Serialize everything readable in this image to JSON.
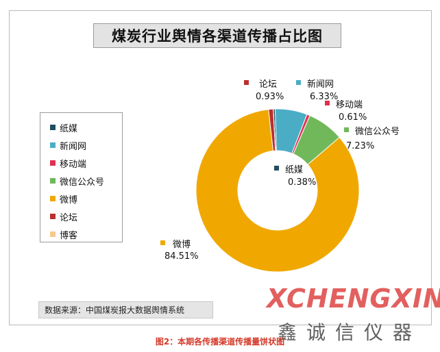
{
  "header_fragment": "",
  "chart_data": {
    "type": "pie",
    "donut": true,
    "title": "煤炭行业舆情各渠道传播占比图",
    "categories": [
      "纸媒",
      "新闻网",
      "移动端",
      "微信公众号",
      "微博",
      "论坛",
      "博客"
    ],
    "values": [
      0.38,
      6.33,
      0.61,
      7.23,
      84.51,
      0.93,
      0.01
    ],
    "value_labels": [
      "0.38%",
      "6.33%",
      "0.61%",
      "7.23%",
      "84.51%",
      "0.93%",
      ""
    ],
    "colors": [
      "#1f4e5f",
      "#4bacc6",
      "#e0304e",
      "#70b85a",
      "#f0a800",
      "#b83030",
      "#f7c98b"
    ],
    "legend_position": "left",
    "source": "数据来源：中国煤炭报大数据舆情系统"
  },
  "watermark": {
    "top": "XCHENGXIN",
    "bottom": "鑫诚信仪器"
  },
  "caption": "图2：本期各传播渠道传播量饼状图"
}
